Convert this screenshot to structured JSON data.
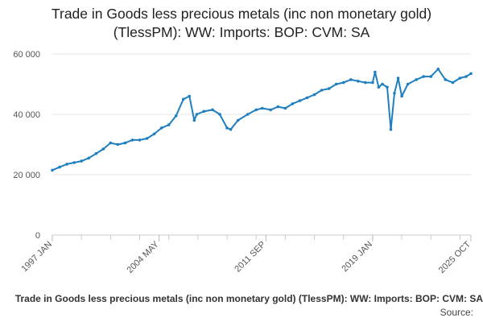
{
  "chart_data": {
    "type": "line",
    "title": "Trade in Goods less precious metals (inc non monetary gold) (TlessPM): WW: Imports: BOP: CVM: SA",
    "xlabel": "",
    "ylabel": "",
    "ylim": [
      0,
      60000
    ],
    "yticks": [
      0,
      20000,
      40000,
      60000
    ],
    "ytick_labels": [
      "0",
      "20 000",
      "40 000",
      "60 000"
    ],
    "xlim": [
      "1997-01",
      "2025-10"
    ],
    "xtick_labels": [
      {
        "label": "1997 JAN",
        "x": "1997-01"
      },
      {
        "label": "2004 MAY",
        "x": "2004-05"
      },
      {
        "label": "2011 SEP",
        "x": "2011-09"
      },
      {
        "label": "2019 JAN",
        "x": "2019-01"
      },
      {
        "label": "2025 OCT",
        "x": "2025-10"
      }
    ],
    "grid": true,
    "legend": "none",
    "line_color": "#1f7fbf",
    "series": [
      {
        "x": [
          "1997-01",
          "1997-07",
          "1998-01",
          "1998-07",
          "1999-01",
          "1999-07",
          "2000-01",
          "2000-07",
          "2001-01",
          "2001-07",
          "2002-01",
          "2002-07",
          "2003-01",
          "2003-07",
          "2004-01",
          "2004-07",
          "2005-01",
          "2005-07",
          "2006-01",
          "2006-06",
          "2006-10",
          "2006-12",
          "2007-06",
          "2008-01",
          "2008-07",
          "2009-01",
          "2009-04",
          "2009-10",
          "2010-06",
          "2011-01",
          "2011-06",
          "2012-01",
          "2012-07",
          "2013-01",
          "2013-07",
          "2014-01",
          "2014-07",
          "2015-01",
          "2015-07",
          "2016-01",
          "2016-07",
          "2017-01",
          "2017-07",
          "2018-01",
          "2018-07",
          "2019-01",
          "2019-03",
          "2019-06",
          "2019-09",
          "2020-01",
          "2020-04",
          "2020-07",
          "2020-10",
          "2021-01",
          "2021-06",
          "2022-01",
          "2022-07",
          "2023-01",
          "2023-07",
          "2024-01",
          "2024-07",
          "2025-01",
          "2025-06",
          "2025-10"
        ],
        "y": [
          21500,
          22500,
          23500,
          24000,
          24500,
          25500,
          27000,
          28500,
          30500,
          30000,
          30500,
          31500,
          31500,
          32000,
          33500,
          35500,
          36500,
          39500,
          45000,
          46000,
          38000,
          40000,
          41000,
          41500,
          40000,
          35500,
          35000,
          38000,
          40000,
          41500,
          42000,
          41500,
          42500,
          42000,
          43500,
          44500,
          45500,
          46500,
          48000,
          48500,
          50000,
          50500,
          51500,
          51000,
          50500,
          50500,
          54000,
          49000,
          50000,
          49000,
          35000,
          47000,
          52000,
          46000,
          50000,
          51500,
          52500,
          52500,
          55000,
          51500,
          50500,
          52000,
          52500,
          53500
        ]
      }
    ]
  },
  "footer": {
    "title": "Trade in Goods less precious metals (inc non monetary gold) (TlessPM): WW: Imports: BOP: CVM: SA",
    "source": "Source:"
  }
}
